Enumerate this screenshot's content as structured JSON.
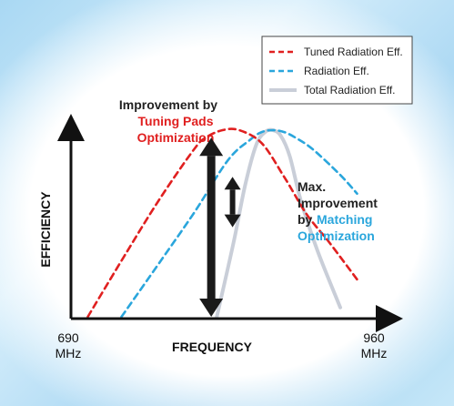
{
  "chart_data": {
    "type": "line",
    "title": "",
    "xlabel": "FREQUENCY",
    "ylabel": "EFFICIENCY",
    "x_ticks": [
      {
        "value": 690,
        "line1": "690",
        "line2": "MHz"
      },
      {
        "value": 960,
        "line1": "960",
        "line2": "MHz"
      }
    ],
    "xlim": [
      690,
      960
    ],
    "ylim": [
      0,
      1
    ],
    "legend_position": "top-right",
    "series": [
      {
        "name": "Tuned Radiation Eff.",
        "color": "#e02020",
        "style": "dashed",
        "x": [
          705,
          740,
          770,
          800,
          810,
          825,
          840,
          860,
          880,
          900,
          920,
          945
        ],
        "y": [
          0.0,
          0.35,
          0.64,
          0.9,
          0.96,
          1.0,
          1.0,
          0.93,
          0.75,
          0.55,
          0.4,
          0.2
        ]
      },
      {
        "name": "Radiation Eff.",
        "color": "#2aa6dc",
        "style": "dashed",
        "x": [
          735,
          770,
          800,
          830,
          850,
          860,
          870,
          880,
          890,
          905,
          930,
          945
        ],
        "y": [
          0.0,
          0.3,
          0.56,
          0.84,
          0.95,
          0.99,
          1.0,
          0.99,
          0.96,
          0.9,
          0.76,
          0.66
        ]
      },
      {
        "name": "Total Radiation Eff.",
        "color": "#c9ced8",
        "style": "solid",
        "x": [
          820,
          835,
          845,
          855,
          863,
          870,
          877,
          885,
          895,
          910,
          930
        ],
        "y": [
          0.0,
          0.4,
          0.7,
          0.92,
          0.99,
          1.0,
          0.97,
          0.86,
          0.62,
          0.35,
          0.05
        ]
      }
    ],
    "annotations": {
      "tuning": {
        "line1": "Improvement by",
        "line2": "Tuning Pads",
        "line3": "Optimization",
        "arrow_x": 815,
        "arrow_y_top": 0.96,
        "arrow_y_bottom": 0.0
      },
      "matching": {
        "line1": "Max.",
        "line2": "Improvement",
        "line3": "by",
        "line4": "Matching",
        "line5": "Optimization",
        "arrow_x": 834,
        "arrow_y_top": 0.75,
        "arrow_y_bottom": 0.48
      }
    }
  },
  "colors": {
    "axis": "#111111",
    "annotation_dark": "#222222",
    "tuning_red": "#e02020",
    "matching_blue": "#2aa6dc",
    "arrow": "#1a1a1a"
  }
}
